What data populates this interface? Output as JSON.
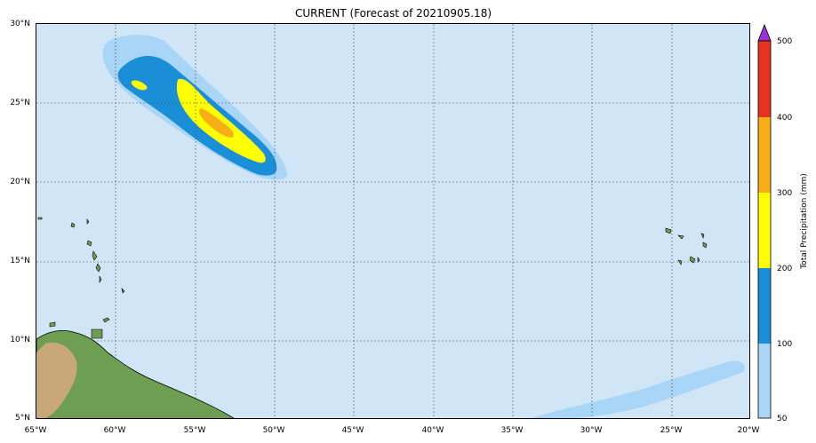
{
  "title": "CURRENT (Forecast of 20210905.18)",
  "x_ticks": [
    "65°W",
    "60°W",
    "55°W",
    "50°W",
    "45°W",
    "40°W",
    "35°W",
    "30°W",
    "25°W",
    "20°W"
  ],
  "y_ticks": [
    "30°N",
    "25°N",
    "20°N",
    "15°N",
    "10°N",
    "5°N"
  ],
  "colorbar": {
    "title": "Total Precipitation (mm)",
    "labels": [
      "500",
      "400",
      "300",
      "200",
      "100",
      "50"
    ],
    "colors": [
      "#9b30d6",
      "#e8321e",
      "#f9ae17",
      "#ffff00",
      "#1a8fd8",
      "#a9d5f7"
    ]
  },
  "colors": {
    "ocean": "#d0e6f6",
    "precip_50": "#a9d5f7",
    "precip_100": "#1a8fd8",
    "precip_200": "#ffff00",
    "precip_300": "#f9ae17",
    "land": "#6d9e52",
    "grid": "#555555"
  },
  "chart_data": {
    "type": "map",
    "lon_range": [
      -65,
      -20
    ],
    "lat_range": [
      5,
      30
    ],
    "grid": true,
    "levels_mm": [
      50,
      100,
      200,
      300,
      400,
      500
    ]
  }
}
